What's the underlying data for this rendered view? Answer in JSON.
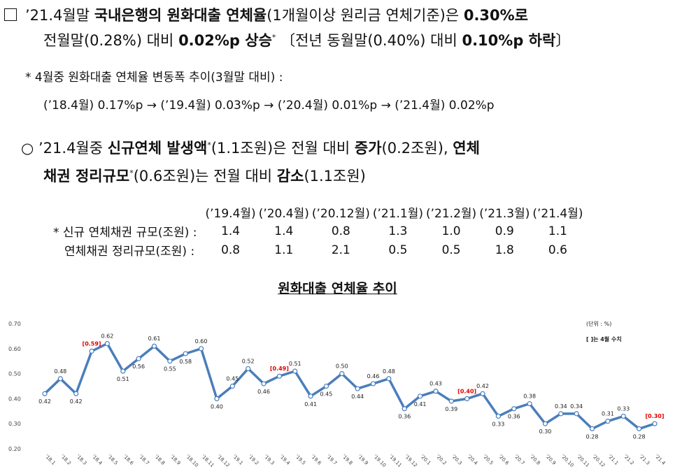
{
  "para1": {
    "bullet": "□",
    "l1a": "’21.4월말 ",
    "l1b": "국내은행의 원화대출 연체율",
    "l1c": "(1개월이상 원리금 연체기준)은 ",
    "l1d": "0.30%로",
    "l2a": "전월말(0.28%) 대비 ",
    "l2b": "0.02%p 상승",
    "l2c": "〔전년 동월말(0.40%) 대비 ",
    "l2d": "0.10%p 하락",
    "l2e": "〕",
    "star": "*"
  },
  "note1": {
    "l1": "* 4월중 원화대출 연체율 변동폭 추이(3월말 대비) :",
    "l2": "(’18.4월) 0.17%p → (’19.4월) 0.03%p → (’20.4월) 0.01%p → (’21.4월) 0.02%p"
  },
  "para2": {
    "l1a": "○ ’21.4월중 ",
    "l1b": "신규연체 발생액",
    "l1c": "(1.1조원)은 전월 대비 ",
    "l1d": "증가",
    "l1e": "(0.2조원), ",
    "l1f": "연체",
    "l2a": "채권 정리규모",
    "l2b": "(0.6조원)는 전월 대비 ",
    "l2c": "감소",
    "l2d": "(1.1조원)",
    "star": "*"
  },
  "small_table": {
    "headers": [
      "(’19.4월)",
      "(’20.4월)",
      "(’20.12월)",
      "(’21.1월)",
      "(’21.2월)",
      "(’21.3월)",
      "(’21.4월)"
    ],
    "rows": [
      {
        "label": "* 신규 연체채권 규모(조원) :",
        "values": [
          "1.4",
          "1.4",
          "0.8",
          "1.3",
          "1.0",
          "0.9",
          "1.1"
        ]
      },
      {
        "label": "연체채권 정리규모(조원) :",
        "values": [
          "0.8",
          "1.1",
          "2.1",
          "0.5",
          "0.5",
          "1.8",
          "0.6"
        ]
      }
    ]
  },
  "chart_title": "원화대출 연체율 추이",
  "chart_data": {
    "type": "line",
    "unit_label": "(단위 : %)",
    "legend_note": "[  ]는 4월 수치",
    "ylim": [
      0.2,
      0.7
    ],
    "y_ticks": [
      "0.20",
      "0.30",
      "0.40",
      "0.50",
      "0.60",
      "0.70"
    ],
    "x": [
      "'18.1",
      "'18.2",
      "'18.3",
      "'18.4",
      "'18.5",
      "'18.6",
      "'18.7",
      "'18.8",
      "'18.9",
      "'18.10",
      "'18.11",
      "'18.12",
      "'19.1",
      "'19.2",
      "'19.3",
      "'19.4",
      "'19.5",
      "'19.6",
      "'19.7",
      "'19.8",
      "'19.9",
      "'19.10",
      "'19.11",
      "'19.12",
      "'20.1",
      "'20.2",
      "'20.3",
      "'20.4",
      "'20.5",
      "'20.6",
      "'20.7",
      "'20.8",
      "'20.9",
      "'20.10",
      "'20.11",
      "'20.12",
      "'21.1",
      "'21.2",
      "'21.3",
      "'21.4"
    ],
    "values": [
      0.42,
      0.48,
      0.42,
      0.59,
      0.62,
      0.51,
      0.56,
      0.61,
      0.55,
      0.58,
      0.6,
      0.4,
      0.45,
      0.52,
      0.46,
      0.49,
      0.51,
      0.41,
      0.45,
      0.5,
      0.44,
      0.46,
      0.48,
      0.36,
      0.41,
      0.43,
      0.39,
      0.4,
      0.42,
      0.33,
      0.36,
      0.38,
      0.3,
      0.34,
      0.34,
      0.28,
      0.31,
      0.33,
      0.28,
      0.3
    ],
    "labels": [
      "0.42",
      "0.48",
      "0.42",
      "[0.59]",
      "0.62",
      "0.51",
      "0.56",
      "0.61",
      "0.55",
      "0.58",
      "0.60",
      "0.40",
      "0.45",
      "0.52",
      "0.46",
      "[0.49]",
      "0.51",
      "0.41",
      "0.45",
      "0.50",
      "0.44",
      "0.46",
      "0.48",
      "0.36",
      "0.41",
      "0.43",
      "0.39",
      "[0.40]",
      "0.42",
      "0.33",
      "0.36",
      "0.38",
      "0.30",
      "0.34",
      "0.34",
      "0.28",
      "0.31",
      "0.33",
      "0.28",
      "[0.30]"
    ],
    "highlight_indices": [
      3,
      15,
      27,
      39
    ],
    "label_pos": [
      "below",
      "above",
      "below",
      "above",
      "above",
      "below",
      "below",
      "above",
      "below",
      "below",
      "above",
      "below",
      "above",
      "above",
      "below",
      "above",
      "above",
      "below",
      "below",
      "above",
      "below",
      "above",
      "above",
      "below",
      "below",
      "above",
      "below",
      "above",
      "above",
      "below",
      "below",
      "above",
      "below",
      "above",
      "above",
      "below",
      "above",
      "above",
      "below",
      "above"
    ],
    "line_color": "#4a7ebb",
    "highlight_color": "#e00000"
  }
}
